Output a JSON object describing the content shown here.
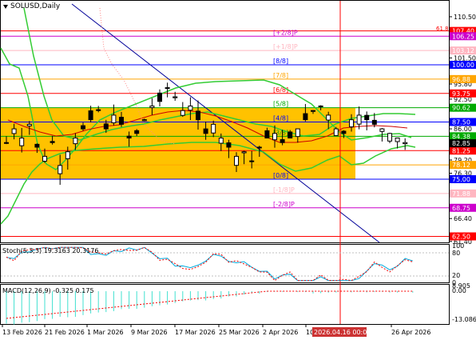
{
  "window": {
    "symbol_title": "SOLUSD,Daily"
  },
  "colors": {
    "zone_fill": "#FFC200",
    "green_line": "#33CC33",
    "blue_line": "#000099",
    "red_line": "#FF0000",
    "ma_red": "#CC0000",
    "pink_line": "#FF00FF",
    "gray_line": "#808080",
    "macd_bar": "#40E0D0",
    "stoch_main": "#00AADD",
    "stoch_signal": "#FF0000"
  },
  "price_axis": {
    "ticks": [
      "110.50",
      "101.50",
      "95.80",
      "92.50",
      "86.00",
      "79.20",
      "76.30",
      "66.40",
      "61.40"
    ],
    "min": 60.0,
    "max": 114.0
  },
  "murrey_levels": [
    {
      "value": 107.4,
      "label": "[+2/8]P",
      "color": "#FF0000",
      "tag_color": "#FF0000",
      "tag": "107.40",
      "show_label": false
    },
    {
      "value": 106.25,
      "label": "[+2/8]P",
      "color": "#CC00CC",
      "tag_color": "#CC00CC",
      "tag": "106.25",
      "show_label": true
    },
    {
      "value": 103.12,
      "label": "[+1/8]P",
      "color": "#FFB6C1",
      "tag_color": "#FFB6C1",
      "tag": "103.12",
      "show_label": true
    },
    {
      "value": 100.0,
      "label": "[8/8]",
      "color": "#0000FF",
      "tag_color": "#0000FF",
      "tag": "100.00",
      "show_label": true
    },
    {
      "value": 96.88,
      "label": "[7/8]",
      "color": "#FFA500",
      "tag_color": "#FFA500",
      "tag": "96.88",
      "show_label": true
    },
    {
      "value": 93.75,
      "label": "[6/8]",
      "color": "#FF0000",
      "tag_color": "#FF0000",
      "tag": "93.75",
      "show_label": true
    },
    {
      "value": 90.62,
      "label": "[5/8]",
      "color": "#00AA00",
      "tag_color": "#00AA00",
      "tag": "90.62",
      "show_label": true
    },
    {
      "value": 87.5,
      "label": "[4/8]",
      "color": "#0000FF",
      "tag_color": "#0000FF",
      "tag": "87.50",
      "show_label": true
    },
    {
      "value": 84.38,
      "label": "[3/8]",
      "color": "#00AA00",
      "tag_color": "#00AA00",
      "tag": "84.38",
      "show_label": true
    },
    {
      "value": 81.25,
      "label": "[2/8]",
      "color": "#FF0000",
      "tag_color": "#FF0000",
      "tag": "81.25",
      "show_label": false
    },
    {
      "value": 78.12,
      "label": "[1/8]",
      "color": "#FFA500",
      "tag_color": "#FFA500",
      "tag": "78.12",
      "show_label": false
    },
    {
      "value": 75.0,
      "label": "[0/8]",
      "color": "#0000FF",
      "tag_color": "#0000FF",
      "tag": "75.00",
      "show_label": true
    },
    {
      "value": 71.88,
      "label": "[-1/8]P",
      "color": "#FFB6C1",
      "tag_color": "#FFB6C1",
      "tag": "71.88",
      "show_label": true
    },
    {
      "value": 68.75,
      "label": "[-2/8]P",
      "color": "#CC00CC",
      "tag_color": "#CC00CC",
      "tag": "68.75",
      "show_label": true
    },
    {
      "value": 62.5,
      "label": "",
      "color": "#FF0000",
      "tag_color": "#FF0000",
      "tag": "62.50",
      "show_label": false
    }
  ],
  "current_price": {
    "value": 82.85,
    "tag": "82.85"
  },
  "top_right_label": "61.8",
  "stoch": {
    "label": "Stoch(5,3,3) 19.3163 20.3176",
    "ticks": [
      "100",
      "80",
      "20",
      "0"
    ]
  },
  "macd": {
    "label": "MACD(12,26,9) -0.325 0.175",
    "ticks": [
      "8.905",
      "0.00",
      "-13.086"
    ]
  },
  "time_axis": {
    "labels": [
      "13 Feb 2026",
      "21 Feb 2026",
      "1 Mar 2026",
      "9 Mar 2026",
      "17 Mar 2026",
      "25 Mar 2026",
      "2 Apr 2026",
      "10",
      "26 Apr 2026"
    ],
    "highlight": "2026.04.16 00:00"
  }
}
